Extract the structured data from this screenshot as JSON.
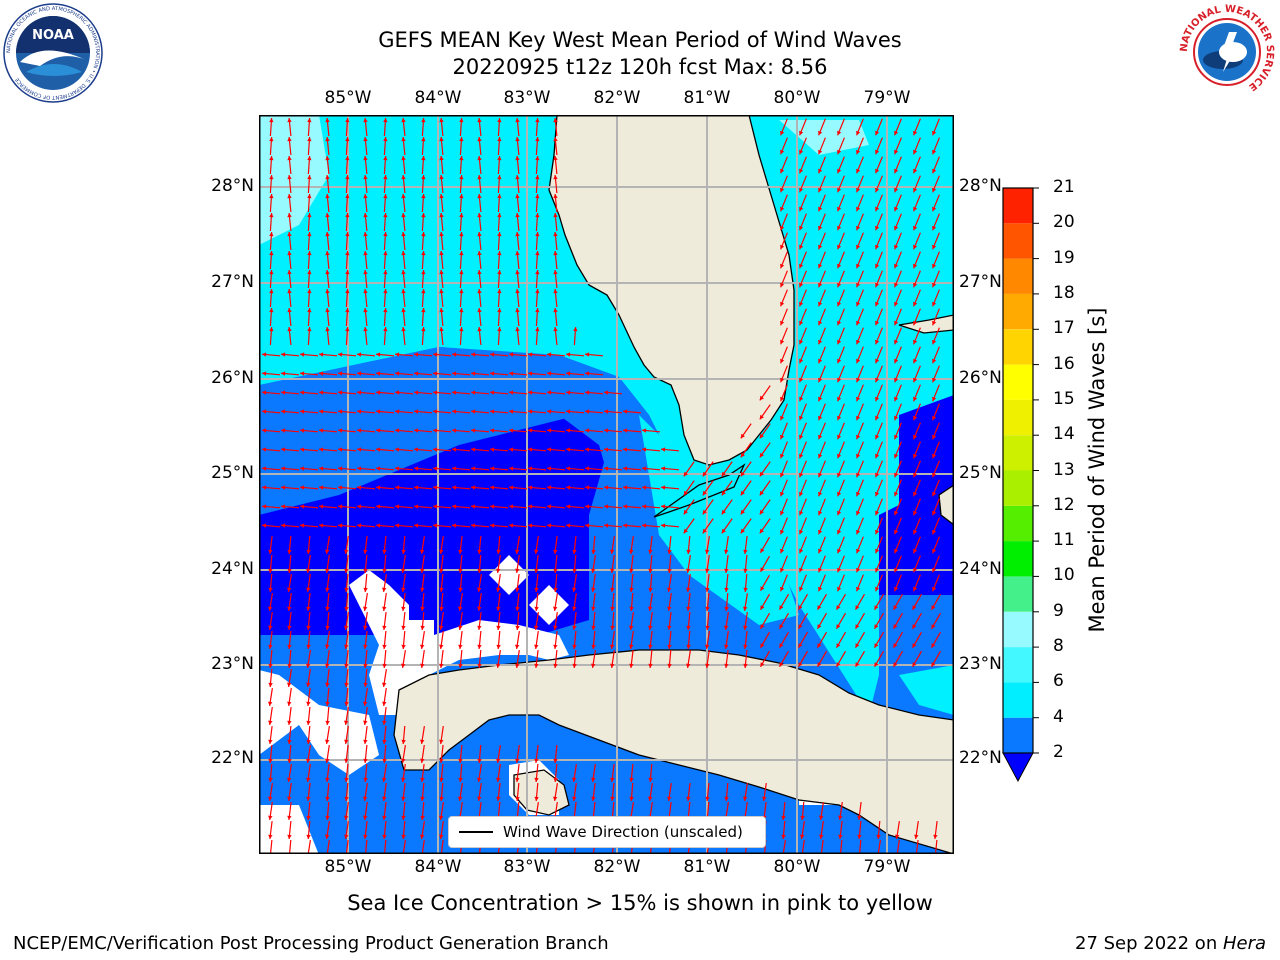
{
  "header": {
    "title_line1": "GEFS MEAN Key West Mean Period of Wind Waves",
    "title_line2": "20220925 t12z 120h fcst   Max: 8.56"
  },
  "logos": {
    "noaa_text": "NOAA",
    "noaa_ring": "NATIONAL OCEANIC AND ATMOSPHERIC ADMINISTRATION • U.S. DEPARTMENT OF COMMERCE",
    "nws_ring": "NATIONAL WEATHER SERVICE"
  },
  "map": {
    "lon_labels": [
      "85°W",
      "84°W",
      "83°W",
      "82°W",
      "81°W",
      "80°W",
      "79°W"
    ],
    "lat_labels": [
      "28°N",
      "27°N",
      "26°N",
      "25°N",
      "24°N",
      "23°N",
      "22°N"
    ],
    "legend_label": "Wind Wave Direction (unscaled)",
    "colors": {
      "land": "#eeebda",
      "ocean_2_4": "#0a78ff",
      "ocean_below_2": "#0000ff",
      "ocean_4_6": "#00f0ff",
      "ocean_6_8": "#96faff",
      "arrow": "#ff0000",
      "grid": "#b4b4b4"
    }
  },
  "colorbar": {
    "label": "Mean Period of Wind Waves [s]",
    "ticks": [
      "2",
      "4",
      "6",
      "8",
      "9",
      "10",
      "11",
      "12",
      "13",
      "14",
      "15",
      "16",
      "17",
      "18",
      "19",
      "20",
      "21"
    ],
    "colors": [
      "#0a78ff",
      "#00eeff",
      "#44f8ff",
      "#96faff",
      "#44f08a",
      "#00ee00",
      "#55ee00",
      "#aaee00",
      "#ccf000",
      "#eef000",
      "#ffff00",
      "#ffd400",
      "#ffaa00",
      "#ff8800",
      "#ff5500",
      "#ff2200",
      "#ff0000"
    ],
    "extend_color": "#0000ff"
  },
  "caption": "Sea Ice Concentration > 15% is shown in pink to yellow",
  "footer": {
    "left": "NCEP/EMC/Verification Post Processing Product Generation Branch",
    "right_date": "27 Sep 2022 on ",
    "right_host": "Hera"
  }
}
